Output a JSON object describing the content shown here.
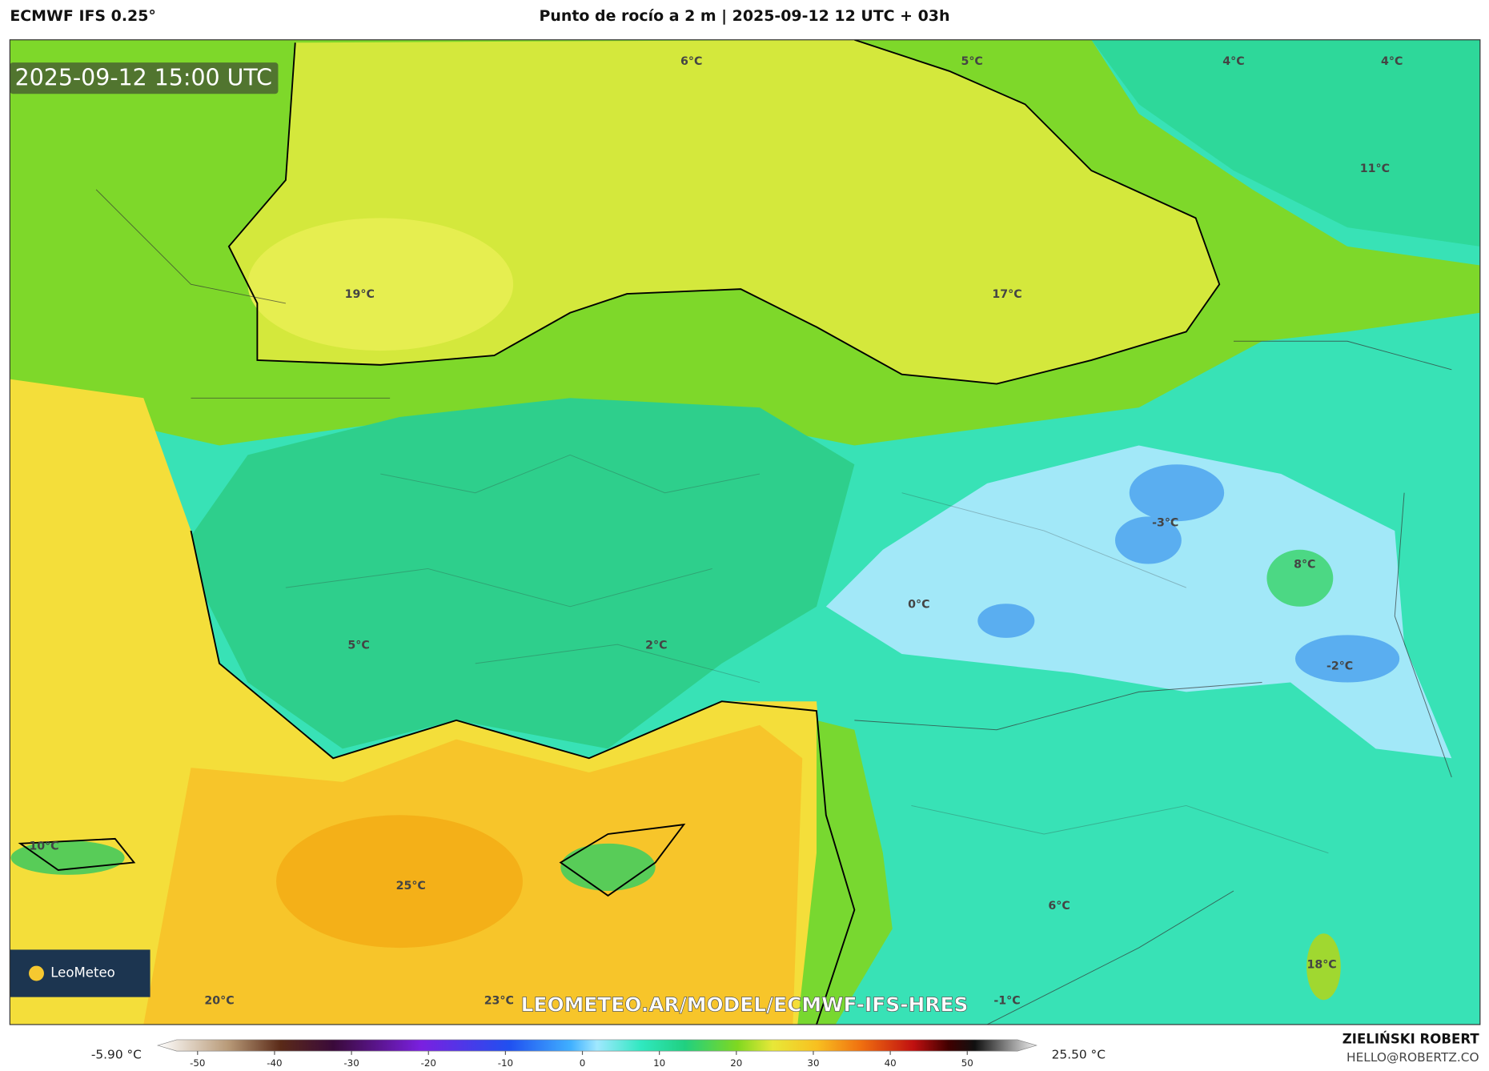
{
  "header": {
    "model": "ECMWF IFS 0.25°",
    "title": "Punto de rocío a 2 m | 2025-09-12 12 UTC + 03h",
    "timestamp": "2025-09-12 15:00 UTC"
  },
  "map": {
    "labels": [
      "6°C",
      "5°C",
      "4°C",
      "4°C",
      "11°C",
      "19°C",
      "17°C",
      "-3°C",
      "8°C",
      "0°C",
      "5°C",
      "2°C",
      "-2°C",
      "10°C",
      "25°C",
      "6°C",
      "18°C",
      "20°C",
      "23°C",
      "-1°C"
    ],
    "watermark": "LEOMETEO.AR/MODEL/ECMWF-IFS-HRES",
    "logo": "LeoMeteo"
  },
  "colorbar": {
    "min_label": "-5.90 °C",
    "max_label": "25.50 °C",
    "ticks": [
      -50,
      -40,
      -30,
      -20,
      -10,
      0,
      10,
      20,
      30,
      40,
      50
    ]
  },
  "footer": {
    "author": "ZIELIŃSKI ROBERT",
    "email": "HELLO@ROBERTZ.CO"
  }
}
